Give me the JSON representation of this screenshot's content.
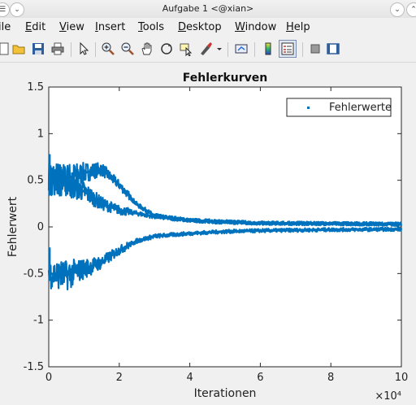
{
  "window": {
    "title": "Aufgabe 1 <@xian>"
  },
  "menu": {
    "items": [
      {
        "label": "ile",
        "u": ""
      },
      {
        "label": "Edit",
        "u": "E"
      },
      {
        "label": "View",
        "u": "V"
      },
      {
        "label": "Insert",
        "u": "I"
      },
      {
        "label": "Tools",
        "u": "T"
      },
      {
        "label": "Desktop",
        "u": "D"
      },
      {
        "label": "Window",
        "u": "W"
      },
      {
        "label": "Help",
        "u": "H"
      }
    ]
  },
  "chart_data": {
    "type": "line",
    "title": "Fehlerkurven",
    "xlabel": "Iterationen",
    "ylabel": "Fehlerwert",
    "x_multiplier": "×10⁴",
    "xlim": [
      0,
      10
    ],
    "ylim": [
      -1.5,
      1.5
    ],
    "xticks": [
      "0",
      "2",
      "4",
      "6",
      "8",
      "10"
    ],
    "yticks": [
      "1.5",
      "1",
      "0.5",
      "0",
      "-0.5",
      "-1",
      "-1.5"
    ],
    "grid": false,
    "legend": {
      "entries": [
        "Fehlerwerte"
      ],
      "placement": "top-right"
    },
    "series_color": "#0072bd",
    "series": [
      {
        "name": "Fehlerwerte",
        "branch": "upper-high",
        "x": [
          0,
          0.5,
          1.0,
          1.5,
          2.0,
          2.5,
          3.0,
          4.0,
          5.0,
          6.0,
          8.0,
          10.0
        ],
        "y": [
          0.55,
          0.52,
          0.58,
          0.62,
          0.45,
          0.24,
          0.12,
          0.07,
          0.05,
          0.04,
          0.035,
          0.03
        ]
      },
      {
        "name": "Fehlerwerte",
        "branch": "upper-low",
        "x": [
          0,
          0.5,
          1.0,
          1.5,
          2.0,
          3.0,
          4.0,
          6.0,
          8.0,
          10.0
        ],
        "y": [
          0.5,
          0.48,
          0.38,
          0.25,
          0.18,
          0.11,
          0.07,
          0.04,
          0.035,
          0.03
        ]
      },
      {
        "name": "Fehlerwerte",
        "branch": "lower",
        "x": [
          0,
          0.5,
          1.0,
          1.5,
          2.0,
          2.5,
          3.0,
          4.0,
          5.0,
          6.0,
          8.0,
          10.0
        ],
        "y": [
          -0.5,
          -0.52,
          -0.45,
          -0.38,
          -0.25,
          -0.15,
          -0.1,
          -0.07,
          -0.05,
          -0.04,
          -0.03,
          -0.025
        ]
      }
    ]
  }
}
